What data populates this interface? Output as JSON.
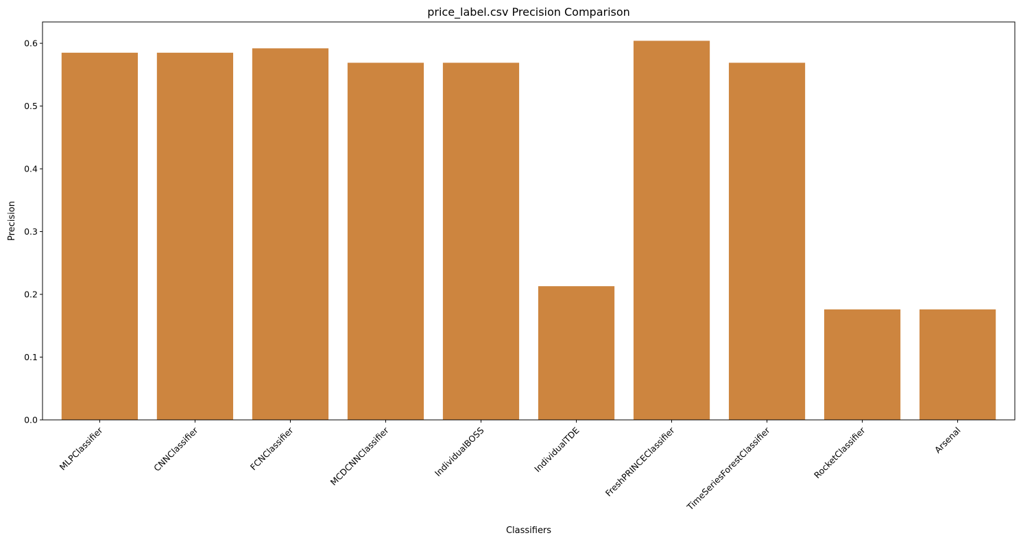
{
  "chart_data": {
    "type": "bar",
    "title": "price_label.csv Precision Comparison",
    "xlabel": "Classifiers",
    "ylabel": "Precision",
    "categories": [
      "MLPClassifier",
      "CNNClassifier",
      "FCNClassifier",
      "MCDCNNClassifier",
      "IndividualBOSS",
      "IndividualTDE",
      "FreshPRINCEClassifier",
      "TimeSeriesForestClassifier",
      "RocketClassifier",
      "Arsenal"
    ],
    "values": [
      0.585,
      0.585,
      0.592,
      0.569,
      0.569,
      0.213,
      0.604,
      0.569,
      0.176,
      0.176
    ],
    "ylim": [
      0,
      0.634
    ],
    "yticks": [
      0.0,
      0.1,
      0.2,
      0.3,
      0.4,
      0.5,
      0.6
    ],
    "ytick_labels": [
      "0.0",
      "0.1",
      "0.2",
      "0.3",
      "0.4",
      "0.5",
      "0.6"
    ],
    "bar_color": "#cd853f",
    "grid": false,
    "legend": "none"
  }
}
